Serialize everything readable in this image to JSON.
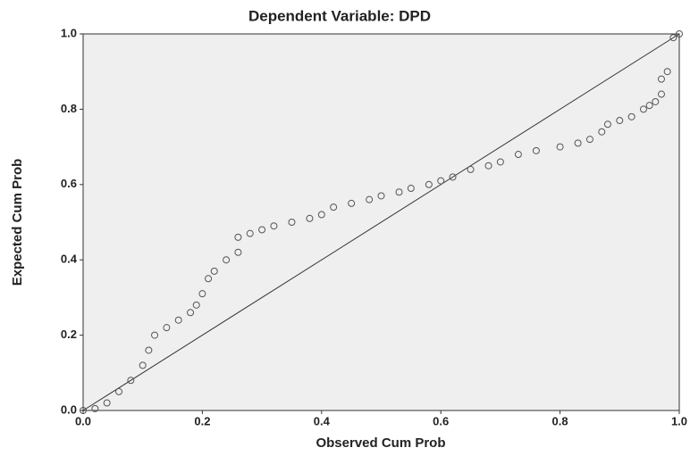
{
  "chart_data": {
    "type": "scatter",
    "title": "Dependent Variable: DPD",
    "x_label": "Observed Cum Prob",
    "y_label": "Expected Cum Prob",
    "x": [
      0.0,
      0.02,
      0.04,
      0.06,
      0.08,
      0.1,
      0.11,
      0.12,
      0.14,
      0.16,
      0.18,
      0.19,
      0.2,
      0.21,
      0.22,
      0.24,
      0.26,
      0.26,
      0.28,
      0.3,
      0.32,
      0.35,
      0.38,
      0.4,
      0.42,
      0.45,
      0.48,
      0.5,
      0.53,
      0.55,
      0.58,
      0.6,
      0.62,
      0.65,
      0.68,
      0.7,
      0.73,
      0.76,
      0.8,
      0.83,
      0.85,
      0.87,
      0.88,
      0.9,
      0.92,
      0.94,
      0.95,
      0.96,
      0.97,
      0.97,
      0.98,
      0.99,
      1.0
    ],
    "values": [
      0.0,
      0.005,
      0.02,
      0.05,
      0.08,
      0.12,
      0.16,
      0.2,
      0.22,
      0.24,
      0.26,
      0.28,
      0.31,
      0.35,
      0.37,
      0.4,
      0.42,
      0.46,
      0.47,
      0.48,
      0.49,
      0.5,
      0.51,
      0.52,
      0.54,
      0.55,
      0.56,
      0.57,
      0.58,
      0.59,
      0.6,
      0.61,
      0.62,
      0.64,
      0.65,
      0.66,
      0.68,
      0.69,
      0.7,
      0.71,
      0.72,
      0.74,
      0.76,
      0.77,
      0.78,
      0.8,
      0.81,
      0.82,
      0.84,
      0.88,
      0.9,
      0.99,
      1.0
    ],
    "color": "#555555",
    "xlim": [
      0,
      1
    ],
    "ylim": [
      0,
      1
    ],
    "xticks": [
      {
        "value": 0,
        "label": "0.0"
      },
      {
        "value": 0.2,
        "label": "0.2"
      },
      {
        "value": 0.4,
        "label": "0.4"
      },
      {
        "value": 0.6,
        "label": "0.6"
      },
      {
        "value": 0.8,
        "label": "0.8"
      },
      {
        "value": 1,
        "label": "1.0"
      }
    ],
    "yticks": [
      {
        "value": 0,
        "label": "0.0"
      },
      {
        "value": 0.2,
        "label": "0.2"
      },
      {
        "value": 0.4,
        "label": "0.4"
      },
      {
        "value": 0.6,
        "label": "0.6"
      },
      {
        "value": 0.8,
        "label": "0.8"
      },
      {
        "value": 1,
        "label": "1.0"
      }
    ]
  }
}
